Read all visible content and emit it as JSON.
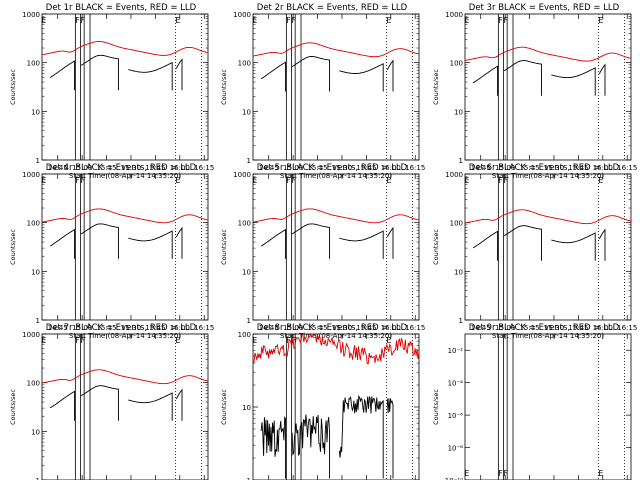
{
  "xlabel": "Start Time (08-Apr-14 14:35:20)",
  "ylabel": "Counts/sec",
  "x_ticks": [
    "14:45",
    "15:00",
    "15:15",
    "15:30",
    "15:45",
    "16:00",
    "16:15"
  ],
  "x_tick_minutes": [
    9.67,
    24.67,
    39.67,
    54.67,
    69.67,
    84.67,
    99.67
  ],
  "x_range_minutes": [
    0,
    102
  ],
  "vlines_solid_minutes": [
    20.5,
    23.7,
    25.9,
    29.5
  ],
  "vlines_dotted_minutes": [
    82.0,
    98.0
  ],
  "markers": [
    {
      "label": "E",
      "t": 0.8
    },
    {
      "label": "F",
      "t": 21.6
    },
    {
      "label": "F",
      "t": 24.9
    },
    {
      "label": "E",
      "t": 83.2
    }
  ],
  "colors": {
    "events": "#000000",
    "lld": "#e00000"
  },
  "chart_data": [
    {
      "type": "line",
      "title": "Det 1r BLACK = Events, RED = LLD",
      "yscale": "log",
      "ylim": [
        1,
        1000
      ],
      "y_ticks": [
        "1",
        "10",
        "100",
        "1000"
      ],
      "events_level": 90,
      "lld_level": 170,
      "variant": "normal"
    },
    {
      "type": "line",
      "title": "Det 2r BLACK = Events, RED = LLD",
      "yscale": "log",
      "ylim": [
        1,
        1000
      ],
      "y_ticks": [
        "1",
        "10",
        "100",
        "1000"
      ],
      "events_level": 85,
      "lld_level": 160,
      "variant": "normal"
    },
    {
      "type": "line",
      "title": "Det 3r BLACK = Events, RED = LLD",
      "yscale": "log",
      "ylim": [
        1,
        1000
      ],
      "y_ticks": [
        "1",
        "10",
        "100",
        "1000"
      ],
      "events_level": 70,
      "lld_level": 130,
      "variant": "normal"
    },
    {
      "type": "line",
      "title": "Det 4r BLACK = Events, RED = LLD",
      "yscale": "log",
      "ylim": [
        1,
        1000
      ],
      "y_ticks": [
        "1",
        "10",
        "100",
        "1000"
      ],
      "events_level": 60,
      "lld_level": 120,
      "variant": "normal"
    },
    {
      "type": "line",
      "title": "Det 5r BLACK = Events, RED = LLD",
      "yscale": "log",
      "ylim": [
        1,
        1000
      ],
      "y_ticks": [
        "1",
        "10",
        "100",
        "1000"
      ],
      "events_level": 60,
      "lld_level": 120,
      "variant": "normal"
    },
    {
      "type": "line",
      "title": "Det 6r BLACK = Events, RED = LLD",
      "yscale": "log",
      "ylim": [
        1,
        1000
      ],
      "y_ticks": [
        "1",
        "10",
        "100",
        "1000"
      ],
      "events_level": 55,
      "lld_level": 115,
      "variant": "normal"
    },
    {
      "type": "line",
      "title": "Det 7r BLACK = Events, RED = LLD",
      "yscale": "log",
      "ylim": [
        1,
        1000
      ],
      "y_ticks": [
        "1",
        "10",
        "100",
        "1000"
      ],
      "events_level": 55,
      "lld_level": 115,
      "variant": "normal"
    },
    {
      "type": "line",
      "title": "Det 8r BLACK = Events, RED = LLD",
      "yscale": "log",
      "ylim": [
        1,
        100
      ],
      "y_ticks": [
        "1",
        "10",
        "100"
      ],
      "events_level": 2,
      "lld_level": 60,
      "variant": "noisy"
    },
    {
      "type": "line",
      "title": "Det 9r BLACK = Events, RED = LLD",
      "yscale": "log",
      "ylim": [
        1e-10,
        0.1
      ],
      "y_ticks": [
        "10⁻¹⁰",
        "10⁻⁸",
        "10⁻⁶",
        "10⁻⁴",
        "10⁻²"
      ],
      "events_level": null,
      "lld_level": null,
      "variant": "empty"
    }
  ]
}
